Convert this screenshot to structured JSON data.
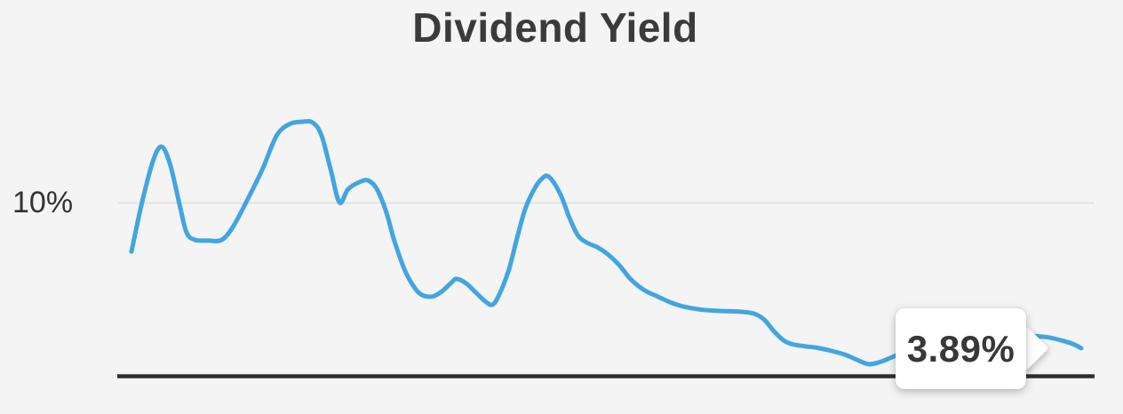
{
  "header": {
    "title": "Dividend Yield"
  },
  "y_axis": {
    "tick_label": "10%",
    "tick_value": 10
  },
  "tooltip": {
    "value_label": "3.89%",
    "value": 3.89
  },
  "chart_data": {
    "type": "line",
    "title": "Dividend Yield",
    "unit": "%",
    "gridline_value": 10,
    "final_value": 3.89,
    "final_label": "3.89%",
    "legend": false,
    "x_axis_labels": [],
    "colors": {
      "line": "#42a5e0",
      "grid": "#e2e2e2",
      "axis": "#2e2e2e",
      "background": "#f4f4f4",
      "tooltip_bg": "#ffffff",
      "tooltip_text": "#383838"
    },
    "series": [
      {
        "name": "Dividend Yield",
        "x_is": "percent of visible time range",
        "points": [
          [
            0,
            7.96
          ],
          [
            1.1,
            10.02
          ],
          [
            2.3,
            11.81
          ],
          [
            3.2,
            12.37
          ],
          [
            4.1,
            11.58
          ],
          [
            5.1,
            9.87
          ],
          [
            5.8,
            8.75
          ],
          [
            6.7,
            8.45
          ],
          [
            8.1,
            8.42
          ],
          [
            9.5,
            8.45
          ],
          [
            10.7,
            9.01
          ],
          [
            12.2,
            10.13
          ],
          [
            13.8,
            11.43
          ],
          [
            15.3,
            12.85
          ],
          [
            16.7,
            13.33
          ],
          [
            18.0,
            13.42
          ],
          [
            19.1,
            13.38
          ],
          [
            20.0,
            12.85
          ],
          [
            21.0,
            11.36
          ],
          [
            21.9,
            10.02
          ],
          [
            22.8,
            10.58
          ],
          [
            24.0,
            10.88
          ],
          [
            24.9,
            10.95
          ],
          [
            25.8,
            10.61
          ],
          [
            26.8,
            9.65
          ],
          [
            27.7,
            8.38
          ],
          [
            28.8,
            7.15
          ],
          [
            29.8,
            6.44
          ],
          [
            30.6,
            6.13
          ],
          [
            31.7,
            6.07
          ],
          [
            32.7,
            6.29
          ],
          [
            33.7,
            6.66
          ],
          [
            34.2,
            6.81
          ],
          [
            35.2,
            6.63
          ],
          [
            36.3,
            6.22
          ],
          [
            37.2,
            5.88
          ],
          [
            38.0,
            5.72
          ],
          [
            38.7,
            6.13
          ],
          [
            39.7,
            7.15
          ],
          [
            40.6,
            8.53
          ],
          [
            41.5,
            9.8
          ],
          [
            42.5,
            10.65
          ],
          [
            43.2,
            11.02
          ],
          [
            43.8,
            11.14
          ],
          [
            44.5,
            10.84
          ],
          [
            45.3,
            10.24
          ],
          [
            46.1,
            9.39
          ],
          [
            47.0,
            8.64
          ],
          [
            47.9,
            8.34
          ],
          [
            49.0,
            8.15
          ],
          [
            50.1,
            7.86
          ],
          [
            51.3,
            7.41
          ],
          [
            52.6,
            6.78
          ],
          [
            54.0,
            6.33
          ],
          [
            55.4,
            6.07
          ],
          [
            56.8,
            5.81
          ],
          [
            58.4,
            5.62
          ],
          [
            60.1,
            5.51
          ],
          [
            61.9,
            5.46
          ],
          [
            64.0,
            5.43
          ],
          [
            65.5,
            5.35
          ],
          [
            66.6,
            5.1
          ],
          [
            67.7,
            4.58
          ],
          [
            68.7,
            4.21
          ],
          [
            69.6,
            4.06
          ],
          [
            70.8,
            3.98
          ],
          [
            72.2,
            3.91
          ],
          [
            73.9,
            3.76
          ],
          [
            75.2,
            3.61
          ],
          [
            76.3,
            3.42
          ],
          [
            77.6,
            3.22
          ],
          [
            78.8,
            3.31
          ],
          [
            80.0,
            3.5
          ],
          [
            81.6,
            3.76
          ],
          [
            83.9,
            4.02
          ],
          [
            86.7,
            4.24
          ],
          [
            89.5,
            4.35
          ],
          [
            92.3,
            4.41
          ],
          [
            94.7,
            4.41
          ],
          [
            96.5,
            4.35
          ],
          [
            98.1,
            4.2
          ],
          [
            99.2,
            4.06
          ],
          [
            100,
            3.89
          ]
        ]
      }
    ]
  }
}
